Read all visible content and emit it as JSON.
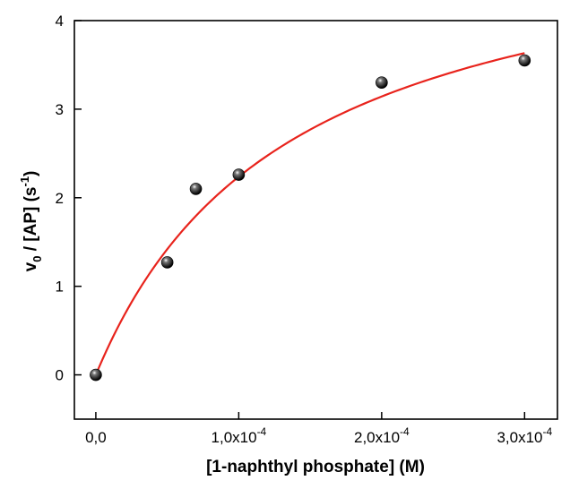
{
  "chart_data": {
    "type": "scatter",
    "title": "",
    "xlabel": "[1-naphthyl phosphate] (M)",
    "ylabel": {
      "main": "v",
      "sub": "0",
      "mid": " / [AP] (s",
      "sup": "-1",
      "end": ")"
    },
    "xlim": [
      -1.5e-05,
      0.000323
    ],
    "ylim": [
      -0.5,
      4
    ],
    "x_ticks": [
      {
        "value": 0,
        "mantissa": "0,0",
        "exponent": ""
      },
      {
        "value": 0.0001,
        "mantissa": "1,0x10",
        "exponent": "-4"
      },
      {
        "value": 0.0002,
        "mantissa": "2,0x10",
        "exponent": "-4"
      },
      {
        "value": 0.0003,
        "mantissa": "3,0x10",
        "exponent": "-4"
      }
    ],
    "y_ticks": [
      {
        "value": 0,
        "label": "0"
      },
      {
        "value": 1,
        "label": "1"
      },
      {
        "value": 2,
        "label": "2"
      },
      {
        "value": 3,
        "label": "3"
      },
      {
        "value": 4,
        "label": "4"
      }
    ],
    "grid": false,
    "series": [
      {
        "kind": "points",
        "color": "#000000",
        "x": [
          0,
          5e-05,
          7e-05,
          0.0001,
          0.0002,
          0.0003
        ],
        "y": [
          0.0,
          1.27,
          2.1,
          2.26,
          3.3,
          3.55
        ]
      },
      {
        "kind": "fit-curve",
        "model": "michaelis-menten",
        "color": "#e8231c",
        "vmax": 5.28,
        "km": 0.000136,
        "x_range": [
          0,
          0.0003
        ]
      }
    ]
  }
}
